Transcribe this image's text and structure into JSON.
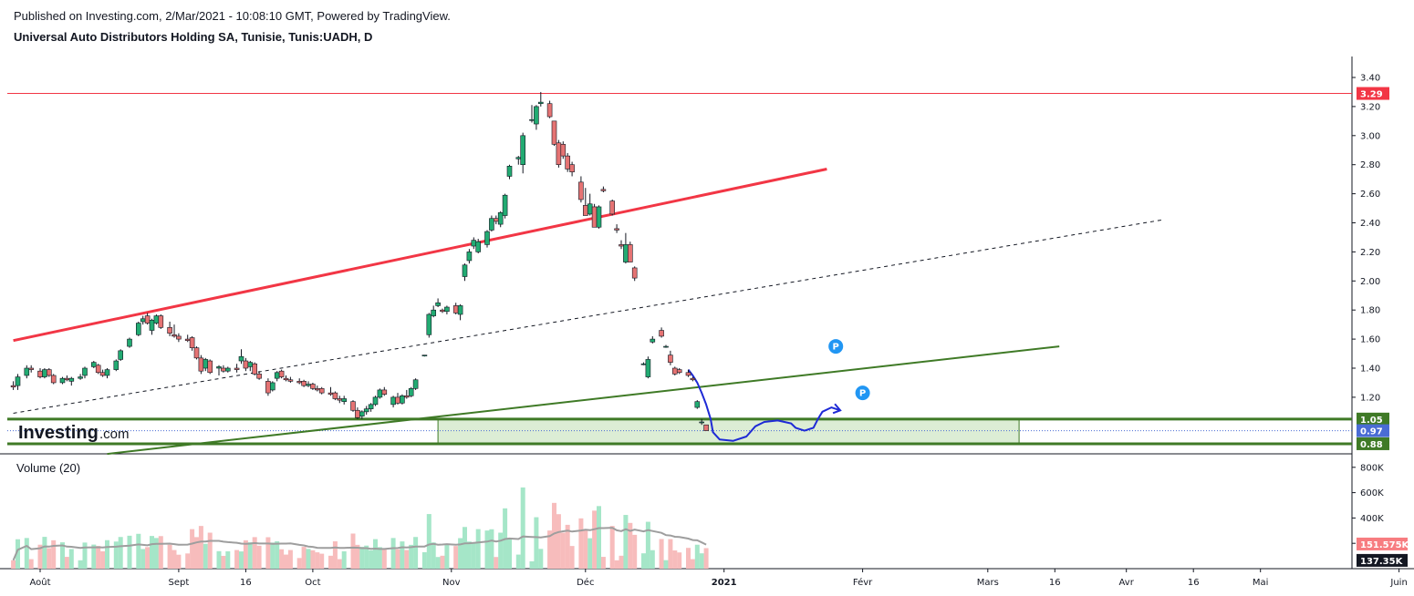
{
  "header": {
    "published": "Published on Investing.com, 2/Mar/2021 - 10:08:10 GMT, Powered by TradingView.",
    "title": "Universal Auto Distributors Holding SA, Tunisie, Tunis:UADH, D"
  },
  "logo": {
    "brand": "Investing",
    "suffix": ".com"
  },
  "colors": {
    "up": "#26a69a",
    "up_fill": "#22ab72",
    "down": "#ef5350",
    "down_fill": "#e57373",
    "resistance": "#f23645",
    "green_line": "#3f7a26",
    "zone_fill": "#d8ebd0",
    "blue_marker": "#2196f3",
    "drawn_path": "#1e2ad6",
    "vol_up": "#a5e6c8",
    "vol_down": "#f7bcbc",
    "vol_ma": "#9e9e9e",
    "current_price": "#4a6cd4"
  },
  "chart_data": {
    "type": "candlestick",
    "title": "Universal Auto Distributors Holding SA, Tunisie, Tunis:UADH, D",
    "y_ticks": [
      "3.40",
      "3.20",
      "3.00",
      "2.80",
      "2.60",
      "2.40",
      "2.20",
      "2.00",
      "1.80",
      "1.60",
      "1.40",
      "1.20"
    ],
    "y_range": [
      0.81,
      3.48
    ],
    "x_labels": [
      {
        "label": "Août",
        "day": 0,
        "bold": false
      },
      {
        "label": "Sept",
        "day": 31,
        "bold": false
      },
      {
        "label": "16",
        "day": 46,
        "bold": false
      },
      {
        "label": "Oct",
        "day": 61,
        "bold": false
      },
      {
        "label": "Nov",
        "day": 92,
        "bold": false
      },
      {
        "label": "Déc",
        "day": 122,
        "bold": false
      },
      {
        "label": "2021",
        "day": 153,
        "bold": true
      },
      {
        "label": "Févr",
        "day": 184,
        "bold": false
      },
      {
        "label": "Mars",
        "day": 212,
        "bold": false
      },
      {
        "label": "16",
        "day": 227,
        "bold": false
      },
      {
        "label": "Avr",
        "day": 243,
        "bold": false
      },
      {
        "label": "16",
        "day": 258,
        "bold": false
      },
      {
        "label": "Mai",
        "day": 273,
        "bold": false
      },
      {
        "label": "Juin",
        "day": 304,
        "bold": false
      }
    ],
    "price_badges": [
      {
        "label": "3.29",
        "value": 3.29,
        "color": "#f23645"
      },
      {
        "label": "1.05",
        "value": 1.05,
        "color": "#3f7a26"
      },
      {
        "label": "0.97",
        "value": 0.97,
        "color": "#4a6cd4"
      },
      {
        "label": "0.88",
        "value": 0.88,
        "color": "#3f7a26"
      }
    ],
    "resistance_level": 3.29,
    "support_zone": {
      "top": 1.05,
      "bottom": 0.88,
      "start_day": 89,
      "end_day": 219
    },
    "current_price": 0.97,
    "trendlines": [
      {
        "name": "red-channel-top",
        "p1": {
          "day": -6,
          "price": 1.59
        },
        "p2": {
          "day": 176,
          "price": 2.77
        }
      },
      {
        "name": "dashed-channel-mid",
        "p1": {
          "day": -6,
          "price": 1.09
        },
        "p2": {
          "day": 251,
          "price": 2.42
        }
      },
      {
        "name": "green-rising-support",
        "p1": {
          "day": 15,
          "price": 0.81
        },
        "p2": {
          "day": 228,
          "price": 1.55
        }
      }
    ],
    "markers": [
      {
        "label": "P",
        "day": 178,
        "price": 1.55
      },
      {
        "label": "P",
        "day": 184,
        "price": 1.23
      }
    ],
    "candles": [
      {
        "d": -6,
        "o": 1.28,
        "h": 1.31,
        "l": 1.25,
        "c": 1.27
      },
      {
        "d": -5,
        "o": 1.28,
        "h": 1.36,
        "l": 1.25,
        "c": 1.34
      },
      {
        "d": -3,
        "o": 1.35,
        "h": 1.42,
        "l": 1.33,
        "c": 1.4
      },
      {
        "d": -2,
        "o": 1.4,
        "h": 1.42,
        "l": 1.37,
        "c": 1.39
      },
      {
        "d": 0,
        "o": 1.38,
        "h": 1.4,
        "l": 1.33,
        "c": 1.34
      },
      {
        "d": 1,
        "o": 1.34,
        "h": 1.4,
        "l": 1.33,
        "c": 1.39
      },
      {
        "d": 2,
        "o": 1.39,
        "h": 1.4,
        "l": 1.34,
        "c": 1.35
      },
      {
        "d": 3,
        "o": 1.35,
        "h": 1.36,
        "l": 1.29,
        "c": 1.3
      },
      {
        "d": 5,
        "o": 1.3,
        "h": 1.34,
        "l": 1.29,
        "c": 1.33
      },
      {
        "d": 6,
        "o": 1.33,
        "h": 1.35,
        "l": 1.31,
        "c": 1.32
      },
      {
        "d": 7,
        "o": 1.31,
        "h": 1.34,
        "l": 1.28,
        "c": 1.33
      },
      {
        "d": 9,
        "o": 1.33,
        "h": 1.36,
        "l": 1.32,
        "c": 1.34
      },
      {
        "d": 10,
        "o": 1.35,
        "h": 1.41,
        "l": 1.33,
        "c": 1.4
      },
      {
        "d": 12,
        "o": 1.41,
        "h": 1.45,
        "l": 1.4,
        "c": 1.44
      },
      {
        "d": 13,
        "o": 1.42,
        "h": 1.43,
        "l": 1.36,
        "c": 1.37
      },
      {
        "d": 14,
        "o": 1.37,
        "h": 1.39,
        "l": 1.34,
        "c": 1.35
      },
      {
        "d": 15,
        "o": 1.35,
        "h": 1.4,
        "l": 1.33,
        "c": 1.39
      },
      {
        "d": 17,
        "o": 1.39,
        "h": 1.46,
        "l": 1.38,
        "c": 1.45
      },
      {
        "d": 18,
        "o": 1.46,
        "h": 1.53,
        "l": 1.45,
        "c": 1.52
      },
      {
        "d": 20,
        "o": 1.55,
        "h": 1.61,
        "l": 1.54,
        "c": 1.6
      },
      {
        "d": 22,
        "o": 1.63,
        "h": 1.72,
        "l": 1.62,
        "c": 1.71
      },
      {
        "d": 23,
        "o": 1.72,
        "h": 1.76,
        "l": 1.7,
        "c": 1.74
      },
      {
        "d": 24,
        "o": 1.76,
        "h": 1.78,
        "l": 1.7,
        "c": 1.71
      },
      {
        "d": 25,
        "o": 1.66,
        "h": 1.74,
        "l": 1.63,
        "c": 1.73
      },
      {
        "d": 26,
        "o": 1.71,
        "h": 1.77,
        "l": 1.7,
        "c": 1.76
      },
      {
        "d": 27,
        "o": 1.76,
        "h": 1.77,
        "l": 1.67,
        "c": 1.68
      },
      {
        "d": 29,
        "o": 1.68,
        "h": 1.72,
        "l": 1.62,
        "c": 1.64
      },
      {
        "d": 30,
        "o": 1.63,
        "h": 1.7,
        "l": 1.61,
        "c": 1.62
      },
      {
        "d": 31,
        "o": 1.62,
        "h": 1.64,
        "l": 1.58,
        "c": 1.6
      },
      {
        "d": 33,
        "o": 1.6,
        "h": 1.63,
        "l": 1.58,
        "c": 1.59
      },
      {
        "d": 34,
        "o": 1.61,
        "h": 1.62,
        "l": 1.52,
        "c": 1.54
      },
      {
        "d": 35,
        "o": 1.54,
        "h": 1.55,
        "l": 1.46,
        "c": 1.47
      },
      {
        "d": 36,
        "o": 1.47,
        "h": 1.49,
        "l": 1.36,
        "c": 1.38
      },
      {
        "d": 37,
        "o": 1.4,
        "h": 1.47,
        "l": 1.38,
        "c": 1.46
      },
      {
        "d": 38,
        "o": 1.45,
        "h": 1.46,
        "l": 1.36,
        "c": 1.37
      },
      {
        "d": 40,
        "o": 1.4,
        "h": 1.42,
        "l": 1.35,
        "c": 1.41
      },
      {
        "d": 41,
        "o": 1.4,
        "h": 1.42,
        "l": 1.37,
        "c": 1.38
      },
      {
        "d": 42,
        "o": 1.38,
        "h": 1.41,
        "l": 1.37,
        "c": 1.4
      },
      {
        "d": 44,
        "o": 1.4,
        "h": 1.43,
        "l": 1.37,
        "c": 1.39
      },
      {
        "d": 45,
        "o": 1.45,
        "h": 1.53,
        "l": 1.43,
        "c": 1.48
      },
      {
        "d": 46,
        "o": 1.45,
        "h": 1.47,
        "l": 1.38,
        "c": 1.4
      },
      {
        "d": 47,
        "o": 1.41,
        "h": 1.45,
        "l": 1.38,
        "c": 1.44
      },
      {
        "d": 48,
        "o": 1.43,
        "h": 1.44,
        "l": 1.35,
        "c": 1.36
      },
      {
        "d": 49,
        "o": 1.36,
        "h": 1.38,
        "l": 1.32,
        "c": 1.33
      },
      {
        "d": 51,
        "o": 1.31,
        "h": 1.33,
        "l": 1.21,
        "c": 1.23
      },
      {
        "d": 52,
        "o": 1.25,
        "h": 1.31,
        "l": 1.24,
        "c": 1.3
      },
      {
        "d": 53,
        "o": 1.33,
        "h": 1.38,
        "l": 1.31,
        "c": 1.37
      },
      {
        "d": 54,
        "o": 1.38,
        "h": 1.39,
        "l": 1.33,
        "c": 1.34
      },
      {
        "d": 55,
        "o": 1.33,
        "h": 1.35,
        "l": 1.31,
        "c": 1.32
      },
      {
        "d": 56,
        "o": 1.32,
        "h": 1.34,
        "l": 1.3,
        "c": 1.31
      },
      {
        "d": 58,
        "o": 1.31,
        "h": 1.33,
        "l": 1.29,
        "c": 1.3
      },
      {
        "d": 59,
        "o": 1.31,
        "h": 1.32,
        "l": 1.27,
        "c": 1.28
      },
      {
        "d": 60,
        "o": 1.28,
        "h": 1.31,
        "l": 1.27,
        "c": 1.29
      },
      {
        "d": 61,
        "o": 1.29,
        "h": 1.3,
        "l": 1.25,
        "c": 1.26
      },
      {
        "d": 62,
        "o": 1.26,
        "h": 1.28,
        "l": 1.24,
        "c": 1.25
      },
      {
        "d": 63,
        "o": 1.26,
        "h": 1.27,
        "l": 1.22,
        "c": 1.23
      },
      {
        "d": 65,
        "o": 1.23,
        "h": 1.27,
        "l": 1.21,
        "c": 1.22
      },
      {
        "d": 66,
        "o": 1.23,
        "h": 1.24,
        "l": 1.18,
        "c": 1.19
      },
      {
        "d": 67,
        "o": 1.19,
        "h": 1.21,
        "l": 1.16,
        "c": 1.18
      },
      {
        "d": 68,
        "o": 1.17,
        "h": 1.21,
        "l": 1.15,
        "c": 1.19
      },
      {
        "d": 70,
        "o": 1.17,
        "h": 1.18,
        "l": 1.1,
        "c": 1.11
      },
      {
        "d": 71,
        "o": 1.11,
        "h": 1.13,
        "l": 1.05,
        "c": 1.06
      },
      {
        "d": 72,
        "o": 1.07,
        "h": 1.11,
        "l": 1.05,
        "c": 1.1
      },
      {
        "d": 73,
        "o": 1.1,
        "h": 1.14,
        "l": 1.08,
        "c": 1.12
      },
      {
        "d": 74,
        "o": 1.12,
        "h": 1.16,
        "l": 1.1,
        "c": 1.15
      },
      {
        "d": 75,
        "o": 1.15,
        "h": 1.21,
        "l": 1.14,
        "c": 1.2
      },
      {
        "d": 76,
        "o": 1.2,
        "h": 1.26,
        "l": 1.19,
        "c": 1.25
      },
      {
        "d": 77,
        "o": 1.25,
        "h": 1.27,
        "l": 1.21,
        "c": 1.22
      },
      {
        "d": 79,
        "o": 1.15,
        "h": 1.21,
        "l": 1.13,
        "c": 1.2
      },
      {
        "d": 80,
        "o": 1.2,
        "h": 1.23,
        "l": 1.15,
        "c": 1.16
      },
      {
        "d": 81,
        "o": 1.16,
        "h": 1.22,
        "l": 1.15,
        "c": 1.21
      },
      {
        "d": 82,
        "o": 1.21,
        "h": 1.25,
        "l": 1.19,
        "c": 1.2
      },
      {
        "d": 83,
        "o": 1.21,
        "h": 1.27,
        "l": 1.2,
        "c": 1.26
      },
      {
        "d": 84,
        "o": 1.26,
        "h": 1.33,
        "l": 1.25,
        "c": 1.32
      },
      {
        "d": 86,
        "o": 1.49,
        "h": 1.49,
        "l": 1.48,
        "c": 1.49
      },
      {
        "d": 87,
        "o": 1.63,
        "h": 1.78,
        "l": 1.61,
        "c": 1.77
      },
      {
        "d": 88,
        "o": 1.76,
        "h": 1.83,
        "l": 1.75,
        "c": 1.8
      },
      {
        "d": 89,
        "o": 1.83,
        "h": 1.88,
        "l": 1.82,
        "c": 1.85
      },
      {
        "d": 90,
        "o": 1.8,
        "h": 1.81,
        "l": 1.78,
        "c": 1.79
      },
      {
        "d": 91,
        "o": 1.79,
        "h": 1.83,
        "l": 1.77,
        "c": 1.82
      },
      {
        "d": 93,
        "o": 1.83,
        "h": 1.85,
        "l": 1.77,
        "c": 1.78
      },
      {
        "d": 94,
        "o": 1.77,
        "h": 1.84,
        "l": 1.73,
        "c": 1.83
      },
      {
        "d": 95,
        "o": 2.03,
        "h": 2.12,
        "l": 2.0,
        "c": 2.11
      },
      {
        "d": 96,
        "o": 2.14,
        "h": 2.22,
        "l": 2.12,
        "c": 2.2
      },
      {
        "d": 97,
        "o": 2.24,
        "h": 2.3,
        "l": 2.22,
        "c": 2.28
      },
      {
        "d": 98,
        "o": 2.2,
        "h": 2.29,
        "l": 2.19,
        "c": 2.27
      },
      {
        "d": 100,
        "o": 2.25,
        "h": 2.35,
        "l": 2.23,
        "c": 2.34
      },
      {
        "d": 101,
        "o": 2.35,
        "h": 2.45,
        "l": 2.34,
        "c": 2.43
      },
      {
        "d": 102,
        "o": 2.43,
        "h": 2.45,
        "l": 2.39,
        "c": 2.41
      },
      {
        "d": 103,
        "o": 2.39,
        "h": 2.48,
        "l": 2.37,
        "c": 2.47
      },
      {
        "d": 104,
        "o": 2.45,
        "h": 2.6,
        "l": 2.43,
        "c": 2.59
      },
      {
        "d": 105,
        "o": 2.72,
        "h": 2.8,
        "l": 2.7,
        "c": 2.79
      },
      {
        "d": 107,
        "o": 2.84,
        "h": 2.86,
        "l": 2.8,
        "c": 2.85
      },
      {
        "d": 108,
        "o": 2.8,
        "h": 3.02,
        "l": 2.74,
        "c": 3.0
      },
      {
        "d": 110,
        "o": 3.11,
        "h": 3.21,
        "l": 3.09,
        "c": 3.11
      },
      {
        "d": 111,
        "o": 3.08,
        "h": 3.21,
        "l": 3.04,
        "c": 3.2
      },
      {
        "d": 112,
        "o": 3.22,
        "h": 3.3,
        "l": 3.2,
        "c": 3.23
      },
      {
        "d": 114,
        "o": 3.22,
        "h": 3.24,
        "l": 3.12,
        "c": 3.13
      },
      {
        "d": 115,
        "o": 3.1,
        "h": 3.1,
        "l": 2.93,
        "c": 2.94
      },
      {
        "d": 116,
        "o": 2.95,
        "h": 2.97,
        "l": 2.78,
        "c": 2.8
      },
      {
        "d": 117,
        "o": 2.94,
        "h": 2.96,
        "l": 2.84,
        "c": 2.86
      },
      {
        "d": 118,
        "o": 2.86,
        "h": 2.88,
        "l": 2.75,
        "c": 2.77
      },
      {
        "d": 119,
        "o": 2.8,
        "h": 2.82,
        "l": 2.72,
        "c": 2.75
      },
      {
        "d": 121,
        "o": 2.68,
        "h": 2.72,
        "l": 2.54,
        "c": 2.56
      },
      {
        "d": 122,
        "o": 2.52,
        "h": 2.64,
        "l": 2.45,
        "c": 2.45
      },
      {
        "d": 123,
        "o": 2.46,
        "h": 2.6,
        "l": 2.45,
        "c": 2.53
      },
      {
        "d": 124,
        "o": 2.51,
        "h": 2.53,
        "l": 2.37,
        "c": 2.37
      },
      {
        "d": 125,
        "o": 2.37,
        "h": 2.52,
        "l": 2.36,
        "c": 2.51
      },
      {
        "d": 126,
        "o": 2.63,
        "h": 2.65,
        "l": 2.61,
        "c": 2.62
      },
      {
        "d": 128,
        "o": 2.55,
        "h": 2.56,
        "l": 2.45,
        "c": 2.46
      },
      {
        "d": 129,
        "o": 2.36,
        "h": 2.39,
        "l": 2.33,
        "c": 2.35
      },
      {
        "d": 130,
        "o": 2.25,
        "h": 2.28,
        "l": 2.22,
        "c": 2.24
      },
      {
        "d": 131,
        "o": 2.13,
        "h": 2.33,
        "l": 2.12,
        "c": 2.25
      },
      {
        "d": 132,
        "o": 2.25,
        "h": 2.27,
        "l": 2.13,
        "c": 2.13
      },
      {
        "d": 133,
        "o": 2.09,
        "h": 2.1,
        "l": 2.0,
        "c": 2.02
      },
      {
        "d": 135,
        "o": 1.43,
        "h": 1.44,
        "l": 1.42,
        "c": 1.43
      },
      {
        "d": 136,
        "o": 1.34,
        "h": 1.48,
        "l": 1.33,
        "c": 1.46
      },
      {
        "d": 137,
        "o": 1.58,
        "h": 1.62,
        "l": 1.57,
        "c": 1.6
      },
      {
        "d": 139,
        "o": 1.66,
        "h": 1.68,
        "l": 1.61,
        "c": 1.62
      },
      {
        "d": 140,
        "o": 1.55,
        "h": 1.56,
        "l": 1.54,
        "c": 1.55
      },
      {
        "d": 141,
        "o": 1.49,
        "h": 1.52,
        "l": 1.42,
        "c": 1.44
      },
      {
        "d": 142,
        "o": 1.4,
        "h": 1.41,
        "l": 1.35,
        "c": 1.36
      },
      {
        "d": 143,
        "o": 1.39,
        "h": 1.4,
        "l": 1.36,
        "c": 1.37
      },
      {
        "d": 145,
        "o": 1.37,
        "h": 1.39,
        "l": 1.34,
        "c": 1.35
      },
      {
        "d": 146,
        "o": 1.33,
        "h": 1.34,
        "l": 1.31,
        "c": 1.32
      },
      {
        "d": 147,
        "o": 1.13,
        "h": 1.18,
        "l": 1.12,
        "c": 1.17
      },
      {
        "d": 148,
        "o": 1.03,
        "h": 1.05,
        "l": 1.01,
        "c": 1.03
      },
      {
        "d": 149,
        "o": 1.01,
        "h": 1.01,
        "l": 0.97,
        "c": 0.97
      }
    ],
    "volume": {
      "label": "Volume (20)",
      "y_ticks": [
        "800K",
        "600K",
        "400K",
        "200K"
      ],
      "y_max": 820000,
      "current_badges": [
        {
          "label": "151.575K",
          "value": 151575,
          "color": "#f77c80"
        },
        {
          "label": "137.35K",
          "value": 137350,
          "color": "#131722"
        }
      ]
    }
  }
}
